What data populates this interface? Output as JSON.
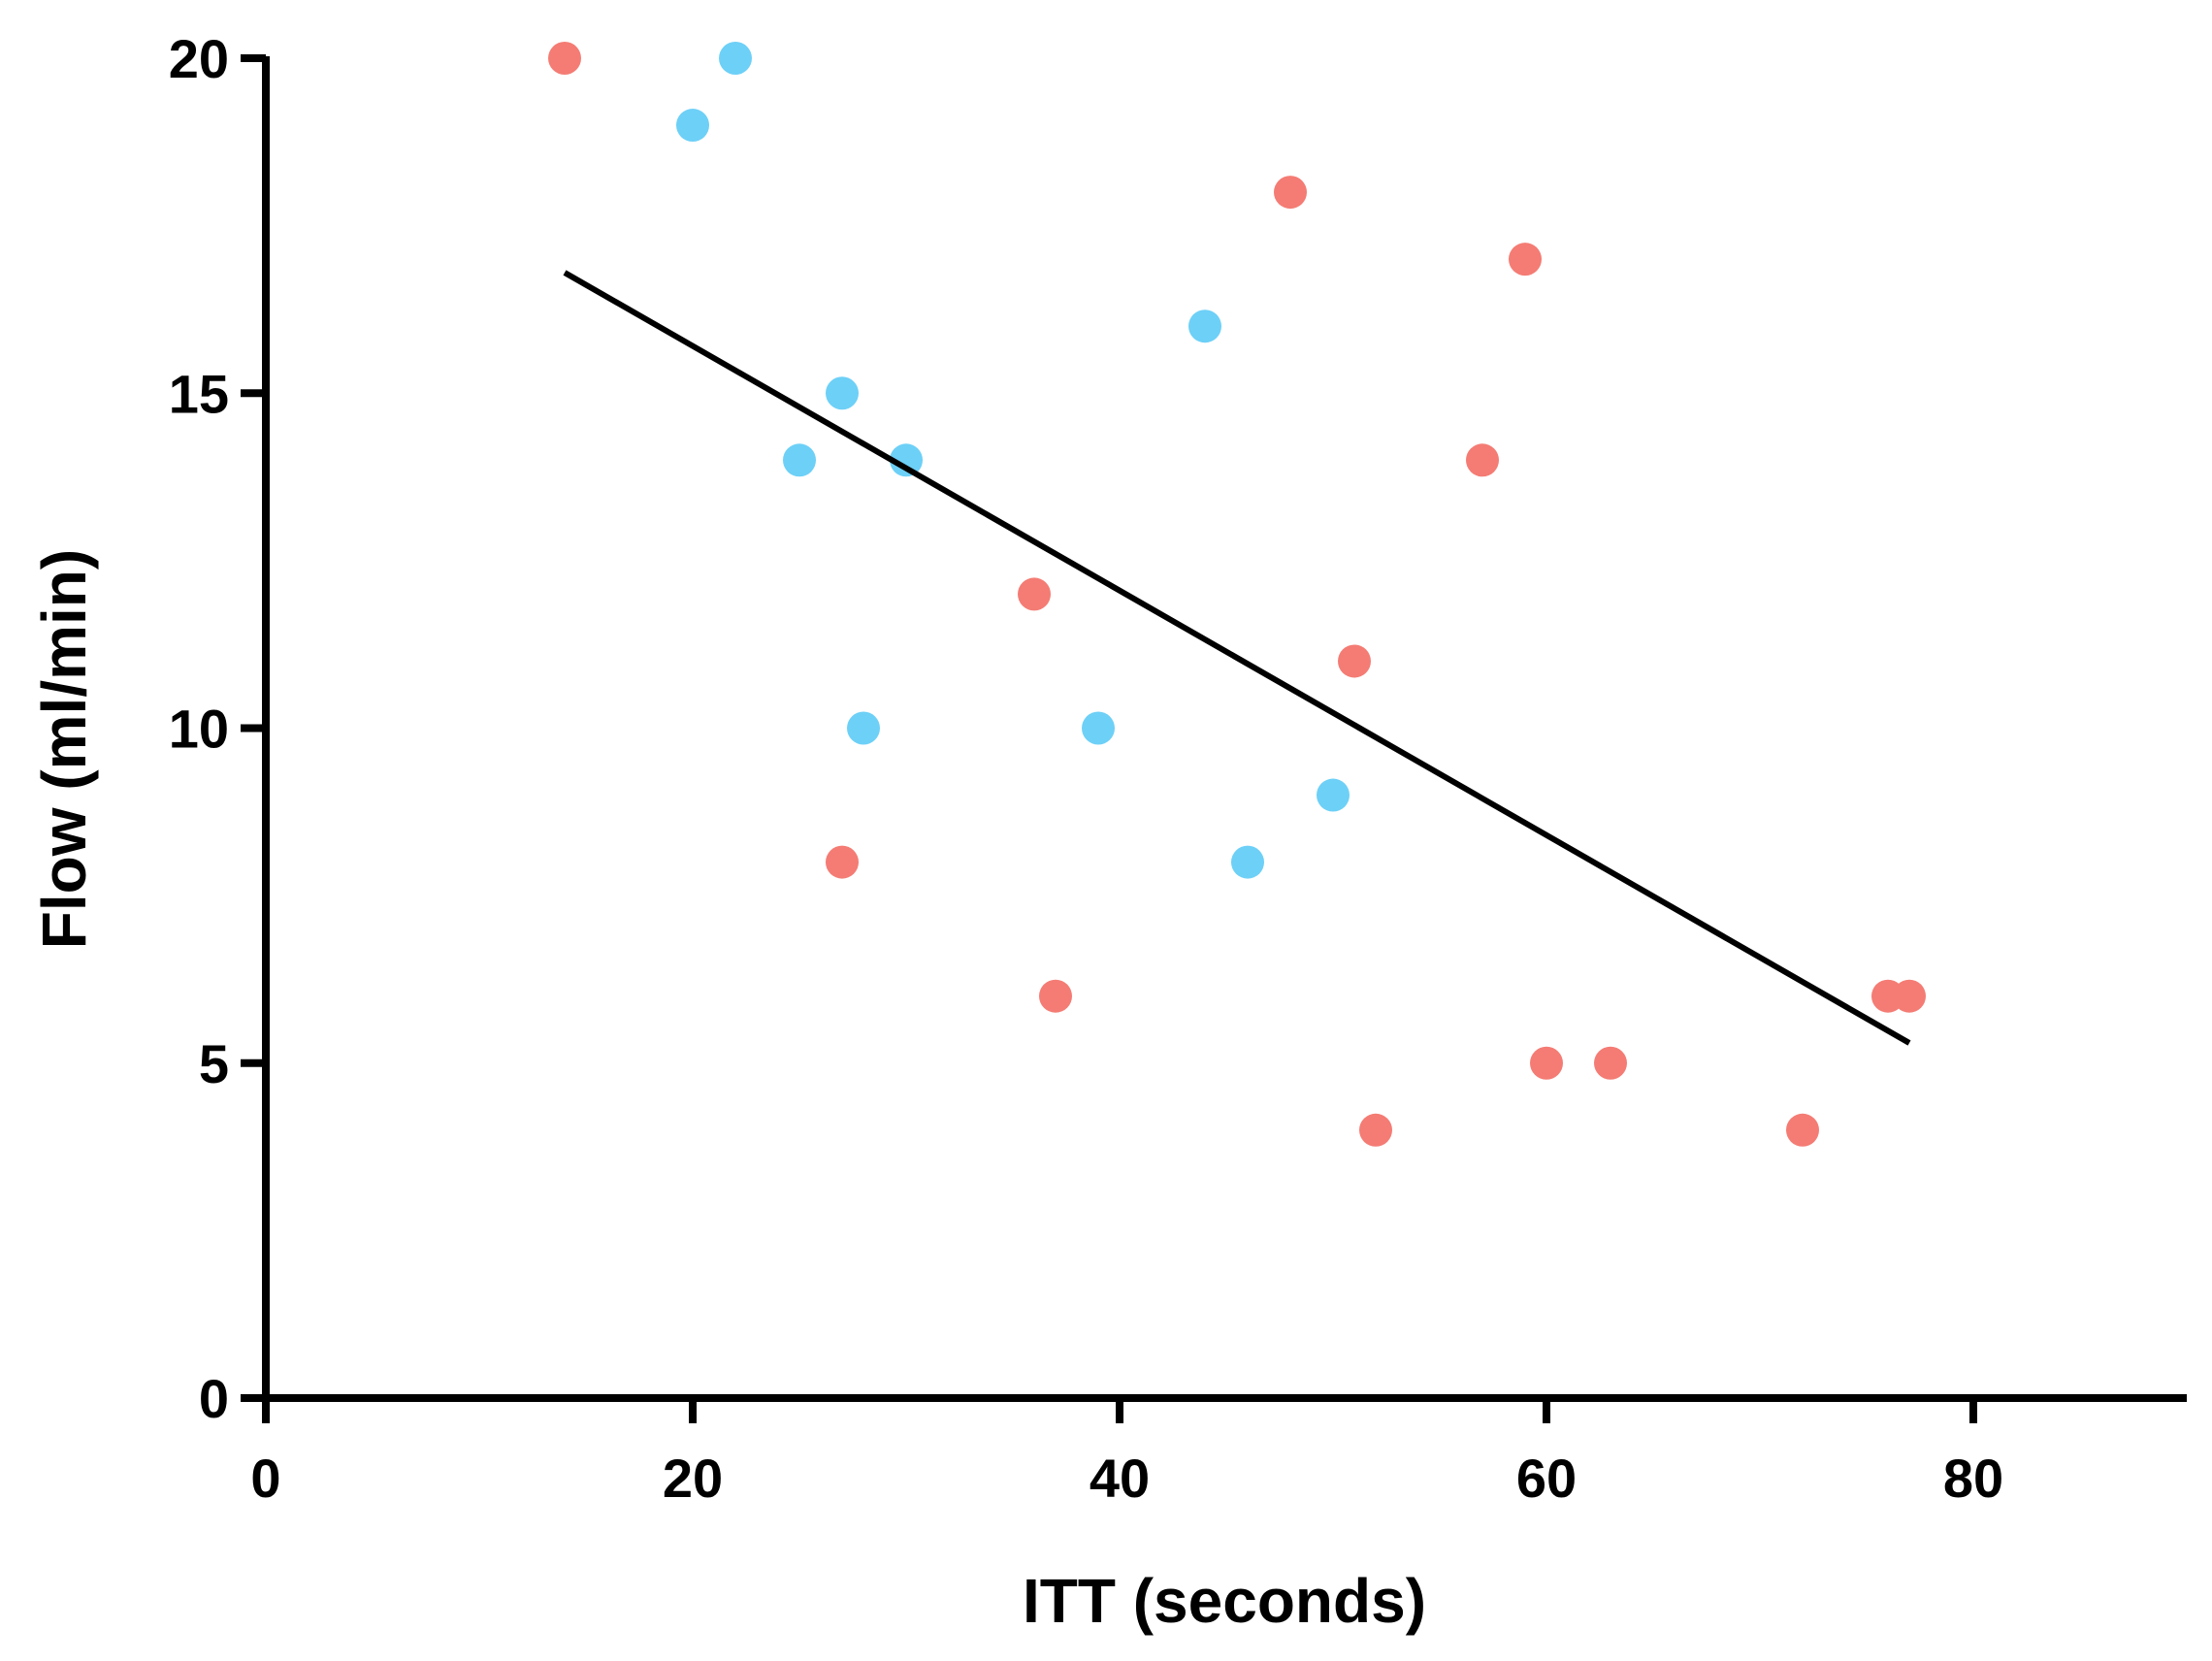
{
  "chart_data": {
    "type": "scatter",
    "title": "",
    "xlabel": "ITT (seconds)",
    "ylabel": "Flow (ml/min)",
    "xlim": [
      0,
      90
    ],
    "ylim": [
      0,
      20
    ],
    "xticks": [
      0,
      20,
      40,
      60,
      80
    ],
    "yticks": [
      0,
      5,
      10,
      15,
      20
    ],
    "grid": false,
    "legend": "none",
    "series": [
      {
        "name": "red",
        "color": "#F47C74",
        "points": [
          {
            "x": 14,
            "y": 20
          },
          {
            "x": 48,
            "y": 18
          },
          {
            "x": 59,
            "y": 17
          },
          {
            "x": 57,
            "y": 14
          },
          {
            "x": 36,
            "y": 12
          },
          {
            "x": 51,
            "y": 11
          },
          {
            "x": 27,
            "y": 8
          },
          {
            "x": 37,
            "y": 6
          },
          {
            "x": 76,
            "y": 6
          },
          {
            "x": 77,
            "y": 6
          },
          {
            "x": 60,
            "y": 5
          },
          {
            "x": 63,
            "y": 5
          },
          {
            "x": 52,
            "y": 4
          },
          {
            "x": 72,
            "y": 4
          }
        ]
      },
      {
        "name": "blue",
        "color": "#6DD0F7",
        "points": [
          {
            "x": 22,
            "y": 20
          },
          {
            "x": 20,
            "y": 19
          },
          {
            "x": 44,
            "y": 16
          },
          {
            "x": 27,
            "y": 15
          },
          {
            "x": 25,
            "y": 14
          },
          {
            "x": 30,
            "y": 14
          },
          {
            "x": 28,
            "y": 10
          },
          {
            "x": 39,
            "y": 10
          },
          {
            "x": 50,
            "y": 9
          },
          {
            "x": 46,
            "y": 8
          }
        ]
      }
    ],
    "regression_line": {
      "x1": 14,
      "y1": 16.8,
      "x2": 77,
      "y2": 5.3,
      "color": "#000000"
    }
  }
}
